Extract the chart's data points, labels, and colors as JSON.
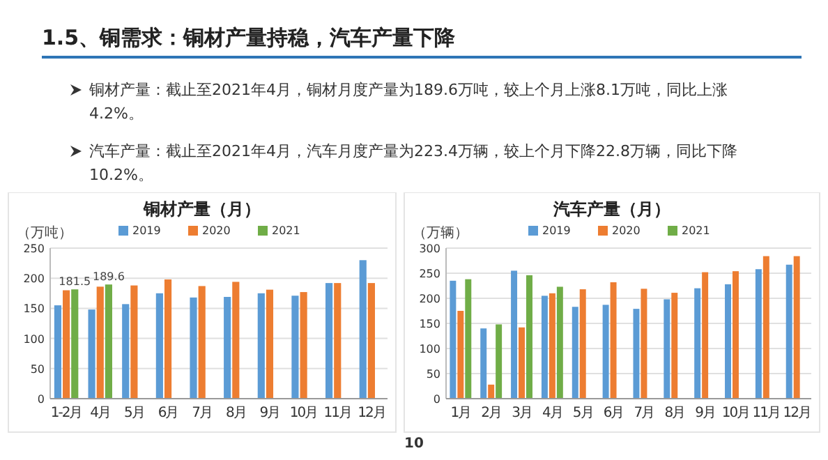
{
  "chart_data": [
    {
      "type": "bar",
      "title": "铜材产量（月）",
      "ylabel": "（万吨）",
      "annotations": [
        "1.5、铜需求：铜材产量持稳，汽车产量下降",
        "铜材产量：截止至2021年4月，铜材月度产量为189.6万吨，较上个月上涨8.1万吨，同比上涨4.2%。",
        "汽车产量：截止至2021年4月，汽车月度产量为223.4万辆，较上个月下降22.8万辆，同比下降10.2%。",
        "10"
      ],
      "categories": [
        "1-2月",
        "4月",
        "5月",
        "6月",
        "7月",
        "8月",
        "9月",
        "10月",
        "11月",
        "12月"
      ],
      "series": [
        {
          "name": "2019",
          "color": "#5b9bd5",
          "values": [
            155,
            148,
            157,
            175,
            168,
            169,
            175,
            171,
            192,
            230
          ]
        },
        {
          "name": "2020",
          "color": "#ed7d31",
          "values": [
            180,
            186,
            188,
            198,
            187,
            194,
            181,
            177,
            192,
            192
          ]
        },
        {
          "name": "2021",
          "color": "#70ad47",
          "values": [
            181.5,
            189.6,
            null,
            null,
            null,
            null,
            null,
            null,
            null,
            null
          ],
          "value_labels": [
            "181.5",
            "189.6",
            null,
            null,
            null,
            null,
            null,
            null,
            null,
            null
          ]
        }
      ],
      "ylim": [
        0,
        250
      ],
      "yticks": [
        0,
        50,
        100,
        150,
        200,
        250
      ],
      "grid": "y",
      "legend": "top"
    },
    {
      "type": "bar",
      "title": "汽车产量（月）",
      "ylabel": "（万辆）",
      "categories": [
        "1月",
        "2月",
        "3月",
        "4月",
        "5月",
        "6月",
        "7月",
        "8月",
        "9月",
        "10月",
        "11月",
        "12月"
      ],
      "series": [
        {
          "name": "2019",
          "color": "#5b9bd5",
          "values": [
            235,
            140,
            255,
            205,
            183,
            187,
            179,
            198,
            220,
            228,
            258,
            267
          ]
        },
        {
          "name": "2020",
          "color": "#ed7d31",
          "values": [
            175,
            28,
            142,
            210,
            218,
            232,
            219,
            211,
            252,
            254,
            284,
            284
          ]
        },
        {
          "name": "2021",
          "color": "#70ad47",
          "values": [
            238,
            148,
            246,
            223,
            null,
            null,
            null,
            null,
            null,
            null,
            null,
            null
          ]
        }
      ],
      "ylim": [
        0,
        300
      ],
      "yticks": [
        0,
        50,
        100,
        150,
        200,
        250,
        300
      ],
      "grid": "y",
      "legend": "top"
    }
  ]
}
